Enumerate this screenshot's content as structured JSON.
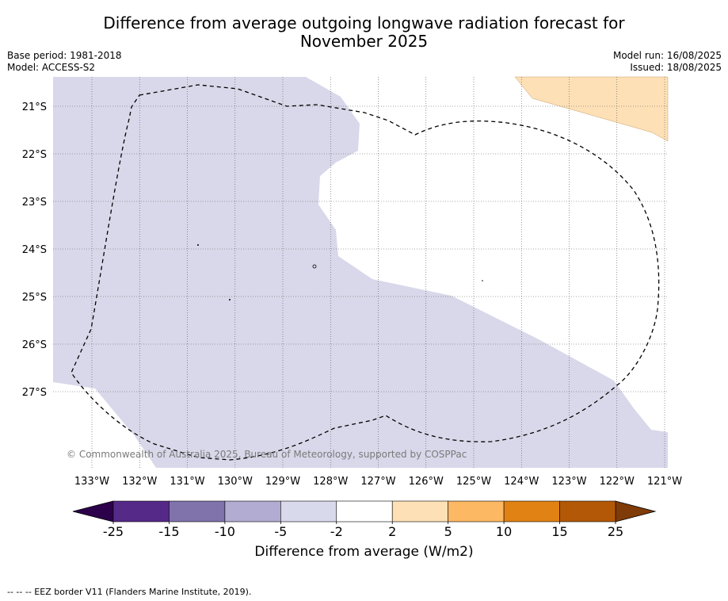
{
  "title_line1": "Difference from average outgoing longwave radiation forecast for",
  "title_line2": "November 2025",
  "base_period": "Base period: 1981-2018",
  "model": "Model: ACCESS-S2",
  "model_run": "Model run: 16/08/2025",
  "issued": "Issued: 18/08/2025",
  "copyright": "© Commonwealth of Australia 2025, Bureau of Meteorology, supported by COSPPac",
  "footer": "--  --  -- EEZ border V11 (Flanders Marine Institute, 2019).",
  "map": {
    "lon_range": [
      -133.8,
      -120.9
    ],
    "lat_range": [
      -28.6,
      -20.4
    ],
    "lat_ticks": [
      "21°S",
      "22°S",
      "23°S",
      "24°S",
      "25°S",
      "26°S",
      "27°S"
    ],
    "lon_ticks": [
      "133°W",
      "132°W",
      "131°W",
      "130°W",
      "129°W",
      "128°W",
      "127°W",
      "126°W",
      "125°W",
      "124°W",
      "123°W",
      "122°W",
      "121°W"
    ],
    "regions": [
      {
        "category": "-5 to -2",
        "color": "#d8d8ea",
        "location": "west and south"
      },
      {
        "category": "2 to 5",
        "color": "#fee0b6",
        "location": "north-east corner"
      }
    ],
    "eez_border": "dashed black line"
  },
  "colorbar": {
    "label": "Difference from average (W/m2)",
    "tick_labels": [
      "-25",
      "-15",
      "-10",
      "-5",
      "-2",
      "2",
      "5",
      "10",
      "15",
      "25"
    ],
    "colors": [
      "#552988",
      "#8073ac",
      "#b2abd2",
      "#d8daeb",
      "#ffffff",
      "#fee0b6",
      "#fdb863",
      "#e08214",
      "#b35806"
    ],
    "extend_low_color": "#2d004b",
    "extend_high_color": "#7f3b08"
  }
}
